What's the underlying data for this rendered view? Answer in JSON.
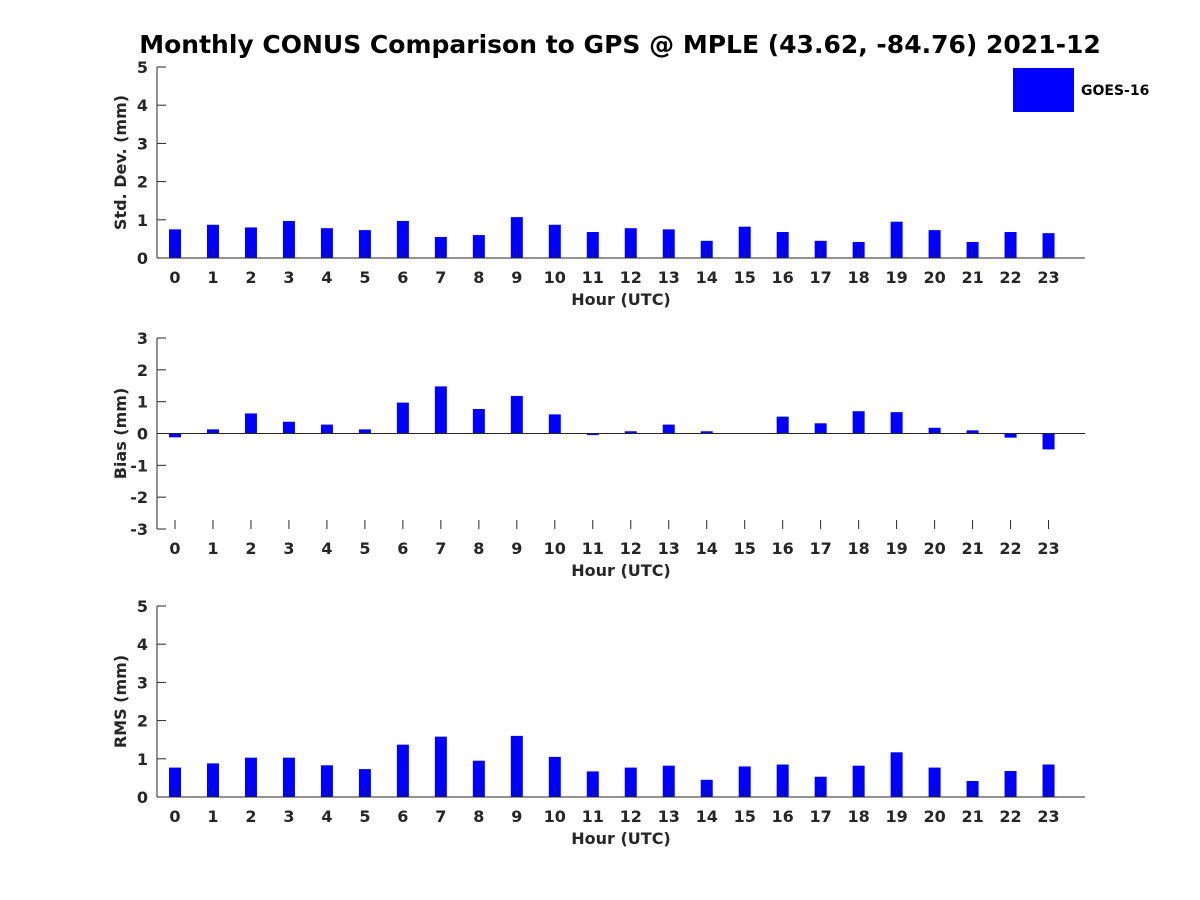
{
  "title": "Monthly CONUS Comparison to GPS @ MPLE (43.62, -84.76) 2021-12",
  "legend": {
    "label": "GOES-16",
    "color": "#0000ff",
    "placement": "top-right"
  },
  "colors": {
    "bar": "#0000ff",
    "axis": "#262626"
  },
  "chart_data": [
    {
      "type": "bar",
      "categories": [
        "0",
        "1",
        "2",
        "3",
        "4",
        "5",
        "6",
        "7",
        "8",
        "9",
        "10",
        "11",
        "12",
        "13",
        "14",
        "15",
        "16",
        "17",
        "18",
        "19",
        "20",
        "21",
        "22",
        "23"
      ],
      "series": [
        {
          "name": "GOES-16",
          "values": [
            0.75,
            0.87,
            0.8,
            0.97,
            0.78,
            0.73,
            0.97,
            0.55,
            0.6,
            1.07,
            0.87,
            0.68,
            0.78,
            0.75,
            0.45,
            0.82,
            0.68,
            0.45,
            0.42,
            0.95,
            0.73,
            0.42,
            0.68,
            0.65
          ]
        }
      ],
      "xlabel": "Hour (UTC)",
      "ylabel": "Std. Dev. (mm)",
      "ylim": [
        0,
        5
      ],
      "yticks": [
        0,
        1,
        2,
        3,
        4,
        5
      ],
      "grid": false
    },
    {
      "type": "bar",
      "categories": [
        "0",
        "1",
        "2",
        "3",
        "4",
        "5",
        "6",
        "7",
        "8",
        "9",
        "10",
        "11",
        "12",
        "13",
        "14",
        "15",
        "16",
        "17",
        "18",
        "19",
        "20",
        "21",
        "22",
        "23"
      ],
      "series": [
        {
          "name": "GOES-16",
          "values": [
            -0.12,
            0.13,
            0.63,
            0.37,
            0.28,
            0.13,
            0.97,
            1.48,
            0.77,
            1.18,
            0.6,
            -0.05,
            0.07,
            0.28,
            0.07,
            0.0,
            0.53,
            0.32,
            0.7,
            0.67,
            0.18,
            0.1,
            -0.13,
            -0.5
          ]
        }
      ],
      "xlabel": "Hour (UTC)",
      "ylabel": "Bias (mm)",
      "ylim": [
        -3,
        3
      ],
      "yticks": [
        -3,
        -2,
        -1,
        0,
        1,
        2,
        3
      ],
      "grid": false
    },
    {
      "type": "bar",
      "categories": [
        "0",
        "1",
        "2",
        "3",
        "4",
        "5",
        "6",
        "7",
        "8",
        "9",
        "10",
        "11",
        "12",
        "13",
        "14",
        "15",
        "16",
        "17",
        "18",
        "19",
        "20",
        "21",
        "22",
        "23"
      ],
      "series": [
        {
          "name": "GOES-16",
          "values": [
            0.77,
            0.88,
            1.03,
            1.03,
            0.83,
            0.73,
            1.37,
            1.58,
            0.95,
            1.6,
            1.05,
            0.67,
            0.77,
            0.82,
            0.45,
            0.8,
            0.85,
            0.53,
            0.82,
            1.17,
            0.77,
            0.42,
            0.68,
            0.85
          ]
        }
      ],
      "xlabel": "Hour (UTC)",
      "ylabel": "RMS (mm)",
      "ylim": [
        0,
        5
      ],
      "yticks": [
        0,
        1,
        2,
        3,
        4,
        5
      ],
      "grid": false
    }
  ]
}
